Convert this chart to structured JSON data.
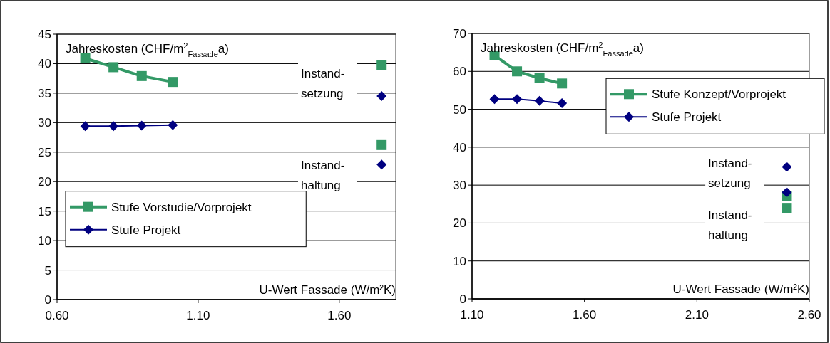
{
  "chart_data": [
    {
      "type": "line",
      "ylabel": "Jahreskosten (CHF/m$^{2}$$_{Fassade}$a)",
      "xlabel": "U-Wert Fassade (W/m²K)",
      "xlim": [
        0.6,
        1.8
      ],
      "xticks": [
        {
          "value": 0.6,
          "label": "0.60"
        },
        {
          "value": 1.1,
          "label": "1.10"
        },
        {
          "value": 1.6,
          "label": "1.60"
        }
      ],
      "ylim": [
        0,
        45
      ],
      "yticks": [
        0,
        5,
        10,
        15,
        20,
        25,
        30,
        35,
        40,
        45
      ],
      "grid": "y",
      "legend": "bottom left",
      "series": [
        {
          "name": "Stufe Vorstudie/Vorprojekt",
          "color": "#339966",
          "marker": "square",
          "x": [
            0.7,
            0.8,
            0.9,
            1.01
          ],
          "values": [
            40.9,
            39.4,
            37.9,
            36.9
          ]
        },
        {
          "name": "Stufe Projekt",
          "color": "#000080",
          "marker": "diamond",
          "x": [
            0.7,
            0.8,
            0.9,
            1.01
          ],
          "values": [
            29.4,
            29.4,
            29.5,
            29.6
          ]
        },
        {
          "type": "scatter",
          "color": "#339966",
          "marker": "square",
          "x": [
            1.75,
            1.75
          ],
          "values": [
            39.7,
            26.2
          ]
        },
        {
          "type": "scatter",
          "color": "#000080",
          "marker": "diamond",
          "x": [
            1.75,
            1.75
          ],
          "values": [
            34.5,
            22.9
          ]
        }
      ],
      "annotations": [
        "Instand-\nsetzung",
        "Instand-\nhaltung"
      ]
    },
    {
      "type": "line",
      "ylabel": "Jahreskosten (CHF/m$^{2}$$_{Fassade}$a)",
      "xlabel": "U-Wert Fassade (W/m²K)",
      "xlim": [
        1.1,
        2.6
      ],
      "xticks": [
        {
          "value": 1.1,
          "label": "1.10"
        },
        {
          "value": 1.6,
          "label": "1.60"
        },
        {
          "value": 2.1,
          "label": "2.10"
        },
        {
          "value": 2.6,
          "label": "2.60"
        }
      ],
      "ylim": [
        0,
        70
      ],
      "yticks": [
        0,
        10,
        20,
        30,
        40,
        50,
        60,
        70
      ],
      "grid": "y",
      "legend": "top right",
      "series": [
        {
          "name": "Stufe Konzept/Vorprojekt",
          "color": "#339966",
          "marker": "square",
          "x": [
            1.2,
            1.3,
            1.4,
            1.5
          ],
          "values": [
            64.2,
            60.0,
            58.2,
            56.8
          ]
        },
        {
          "name": "Stufe Projekt",
          "color": "#000080",
          "marker": "diamond",
          "x": [
            1.2,
            1.3,
            1.4,
            1.5
          ],
          "values": [
            52.7,
            52.7,
            52.2,
            51.6
          ]
        },
        {
          "type": "scatter",
          "color": "#339966",
          "marker": "square",
          "x": [
            2.5,
            2.5
          ],
          "values": [
            27.2,
            24.0
          ]
        },
        {
          "type": "scatter",
          "color": "#000080",
          "marker": "diamond",
          "x": [
            2.5,
            2.5
          ],
          "values": [
            34.8,
            28.1
          ]
        }
      ],
      "annotations": [
        "Instand-\nsetzung",
        "Instand-\nhaltung"
      ]
    }
  ]
}
